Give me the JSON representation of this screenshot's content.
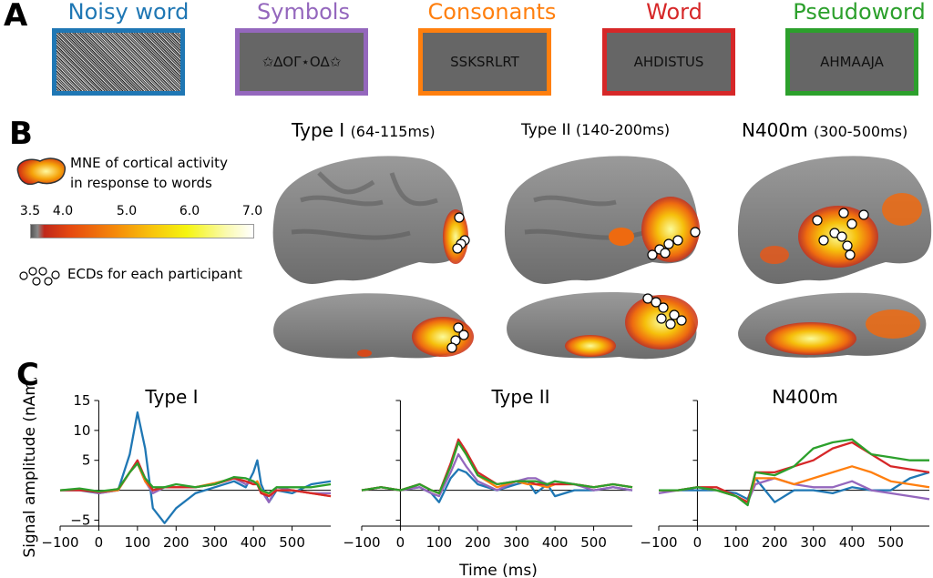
{
  "panels": {
    "a": "A",
    "b": "B",
    "c": "C"
  },
  "stimuli": [
    {
      "title": "Noisy word",
      "text": "",
      "color": "#1f77b4"
    },
    {
      "title": "Symbols",
      "text": "✩∆ΟΓ⋆Ο∆✩",
      "color": "#9467bd"
    },
    {
      "title": "Consonants",
      "text": "SSKSRLRT",
      "color": "#ff7f0e"
    },
    {
      "title": "Word",
      "text": "AHDISTUS",
      "color": "#d62728"
    },
    {
      "title": "Pseudoword",
      "text": "AHMAAJA",
      "color": "#2ca02c"
    }
  ],
  "brains": [
    {
      "name": "Type I",
      "window": "(64-115ms)"
    },
    {
      "name": "Type II",
      "window": "(140-200ms)"
    },
    {
      "name": "N400m",
      "window": "(300-500ms)"
    }
  ],
  "legend": {
    "mne_line1": "MNE of cortical activity",
    "mne_line2": "in response to words",
    "ticks": [
      "3.5",
      "4.0",
      "5.0",
      "6.0",
      "7.0"
    ],
    "ecd_label": "ECDs for each participant"
  },
  "chart_data": [
    {
      "type": "line",
      "title": "Type I",
      "xlabel": "Time (ms)",
      "ylabel": "Signal amplitude (nAm)",
      "xlim": [
        -100,
        600
      ],
      "ylim": [
        -6,
        15
      ],
      "xticks": [
        "−100",
        "0",
        "100",
        "200",
        "300",
        "400",
        "500"
      ],
      "yticks": [
        "15",
        "10",
        "5",
        "−5"
      ],
      "x": [
        -100,
        -50,
        0,
        50,
        80,
        100,
        120,
        140,
        170,
        200,
        250,
        300,
        350,
        380,
        400,
        410,
        420,
        440,
        460,
        500,
        550,
        600
      ],
      "series": [
        {
          "name": "Noisy word",
          "color": "#1f77b4",
          "values": [
            0,
            0,
            -0.5,
            0,
            6,
            13,
            7,
            -3,
            -5.5,
            -3,
            -0.5,
            0.5,
            1.5,
            0.5,
            3,
            5,
            1,
            -2,
            0,
            -0.5,
            1,
            1.5
          ]
        },
        {
          "name": "Symbols",
          "color": "#9467bd",
          "values": [
            0,
            0.2,
            -0.5,
            0,
            3,
            4.5,
            1.5,
            -0.5,
            0.5,
            0.5,
            0.5,
            1,
            2,
            1,
            1.5,
            1,
            0,
            -2,
            0.5,
            0,
            -0.5,
            -0.5
          ]
        },
        {
          "name": "Consonants",
          "color": "#ff7f0e",
          "values": [
            0,
            0.2,
            -0.3,
            0,
            3,
            4.5,
            1.5,
            0,
            0.5,
            0.5,
            0.5,
            1.2,
            2,
            1.5,
            1,
            1.5,
            0,
            -1,
            0,
            0,
            -0.5,
            -1
          ]
        },
        {
          "name": "Word",
          "color": "#d62728",
          "values": [
            0,
            0,
            -0.3,
            0.2,
            3,
            5,
            2,
            0,
            0.5,
            0.5,
            0.5,
            1,
            2,
            1.5,
            1,
            1,
            -0.5,
            -1,
            0,
            0,
            -0.5,
            -1
          ]
        },
        {
          "name": "Pseudoword",
          "color": "#2ca02c",
          "values": [
            0,
            0.3,
            -0.2,
            0.2,
            3,
            4.5,
            2,
            0.5,
            0.5,
            1,
            0.5,
            1,
            2.2,
            2,
            1.5,
            1,
            0,
            -0.5,
            0.5,
            0.5,
            0.5,
            1
          ]
        }
      ]
    },
    {
      "type": "line",
      "title": "Type II",
      "xlabel": "Time (ms)",
      "xlim": [
        -100,
        600
      ],
      "ylim": [
        -6,
        15
      ],
      "xticks": [
        "−100",
        "0",
        "100",
        "200",
        "300",
        "400",
        "500"
      ],
      "x": [
        -100,
        -50,
        0,
        50,
        80,
        100,
        130,
        150,
        170,
        200,
        250,
        300,
        330,
        350,
        380,
        400,
        450,
        500,
        550,
        600
      ],
      "series": [
        {
          "name": "Noisy word",
          "color": "#1f77b4",
          "values": [
            0,
            0.5,
            0,
            0.5,
            -0.5,
            -2,
            2,
            3.5,
            3,
            1,
            0,
            1,
            1.5,
            -0.5,
            1,
            -1,
            0,
            0,
            0.5,
            0
          ]
        },
        {
          "name": "Symbols",
          "color": "#9467bd",
          "values": [
            0,
            0.5,
            0,
            0.5,
            -0.5,
            -1,
            3,
            6,
            4,
            1.5,
            0,
            1.5,
            2,
            2,
            1,
            1.5,
            1,
            0,
            0.5,
            0
          ]
        },
        {
          "name": "Consonants",
          "color": "#ff7f0e",
          "values": [
            0,
            0.5,
            0,
            1,
            0,
            -0.5,
            4,
            8,
            6,
            2.5,
            0.5,
            1.5,
            1,
            1,
            0.5,
            1,
            1,
            0.5,
            1,
            0.5
          ]
        },
        {
          "name": "Word",
          "color": "#d62728",
          "values": [
            0,
            0.5,
            0,
            1,
            0,
            -0.5,
            4.5,
            8.5,
            6.5,
            3,
            1,
            1.5,
            1.5,
            1,
            1,
            1,
            1,
            0.5,
            1,
            0.5
          ]
        },
        {
          "name": "Pseudoword",
          "color": "#2ca02c",
          "values": [
            0,
            0.5,
            0,
            1,
            0,
            -0.5,
            4,
            8,
            6,
            2.5,
            1,
            1.5,
            1.5,
            1.5,
            1,
            1.5,
            1,
            0.5,
            1,
            0.5
          ]
        }
      ]
    },
    {
      "type": "line",
      "title": "N400m",
      "xlabel": "Time (ms)",
      "xlim": [
        -100,
        600
      ],
      "ylim": [
        -6,
        15
      ],
      "xticks": [
        "−100",
        "0",
        "100",
        "200",
        "300",
        "400",
        "500"
      ],
      "x": [
        -100,
        -50,
        0,
        50,
        100,
        130,
        150,
        200,
        250,
        300,
        350,
        400,
        450,
        500,
        550,
        600
      ],
      "series": [
        {
          "name": "Noisy word",
          "color": "#1f77b4",
          "values": [
            0,
            0,
            0,
            0,
            -0.5,
            -1.5,
            2,
            -2,
            0,
            0,
            -0.5,
            0.5,
            0,
            0,
            2,
            3
          ]
        },
        {
          "name": "Symbols",
          "color": "#9467bd",
          "values": [
            -0.5,
            0,
            0.5,
            0,
            -1,
            -2,
            1,
            2,
            1,
            0.5,
            0.5,
            1.5,
            0,
            -0.5,
            -1,
            -1.5
          ]
        },
        {
          "name": "Consonants",
          "color": "#ff7f0e",
          "values": [
            0,
            0,
            0.5,
            0,
            -1,
            -2,
            2,
            2,
            1,
            2,
            3,
            4,
            3,
            1.5,
            1,
            0.5
          ]
        },
        {
          "name": "Word",
          "color": "#d62728",
          "values": [
            0,
            0,
            0.5,
            0.5,
            -1,
            -2,
            3,
            3,
            4,
            5,
            7,
            8,
            6,
            4,
            3.5,
            3
          ]
        },
        {
          "name": "Pseudoword",
          "color": "#2ca02c",
          "values": [
            0,
            0,
            0.5,
            0,
            -1,
            -2.5,
            3,
            2.5,
            4,
            7,
            8,
            8.5,
            6,
            5.5,
            5,
            5
          ]
        }
      ]
    }
  ]
}
